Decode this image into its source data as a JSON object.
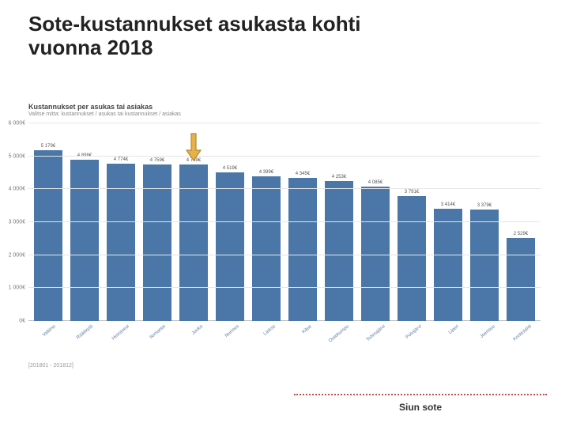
{
  "title": "Sote-kustannukset asukasta kohti\nvuonna 2018",
  "chart": {
    "type": "bar",
    "heading": "Kustannukset per asukas tai asiakas",
    "subheading": "Valitse mitta: kustannukset / asukas tai kustannukset / asiakas",
    "y": {
      "min": 0,
      "max": 6000,
      "step": 1000,
      "unit_suffix": "€"
    },
    "bar_color": "#4b77a8",
    "grid_color": "#e6e6e6",
    "axis_text_color": "#777777",
    "category_text_color": "#5d7ca5",
    "background": "#ffffff",
    "bars": [
      {
        "category": "Valtimo",
        "value": 5179,
        "label": "5 179€"
      },
      {
        "category": "Rääkkylä",
        "value": 4898,
        "label": "4 898€"
      },
      {
        "category": "Heinävesi",
        "value": 4774,
        "label": "4 774€"
      },
      {
        "category": "Ilomantsi",
        "value": 4759,
        "label": "4 759€"
      },
      {
        "category": "Juuka",
        "value": 4749,
        "label": "4 749€"
      },
      {
        "category": "Nurmes",
        "value": 4519,
        "label": "4 519€"
      },
      {
        "category": "Lieksa",
        "value": 4399,
        "label": "4 399€"
      },
      {
        "category": "Kitee",
        "value": 4345,
        "label": "4 345€"
      },
      {
        "category": "Outokumpu",
        "value": 4253,
        "label": "4 253€"
      },
      {
        "category": "Tohmajärvi",
        "value": 4085,
        "label": "4 085€"
      },
      {
        "category": "Polvijärvi",
        "value": 3791,
        "label": "3 791€"
      },
      {
        "category": "Liperi",
        "value": 3414,
        "label": "3 414€"
      },
      {
        "category": "Joensuu",
        "value": 3379,
        "label": "3 379€"
      },
      {
        "category": "Kontiolahti",
        "value": 2529,
        "label": "2 529€"
      }
    ],
    "date_range": "[201801 - 201812]"
  },
  "arrow": {
    "target_bar_index": 4,
    "outline_color": "#b58a2e",
    "fill_color": "#e8b04a"
  },
  "footer": {
    "line_color": "#c0504d",
    "text": "Siun sote"
  }
}
